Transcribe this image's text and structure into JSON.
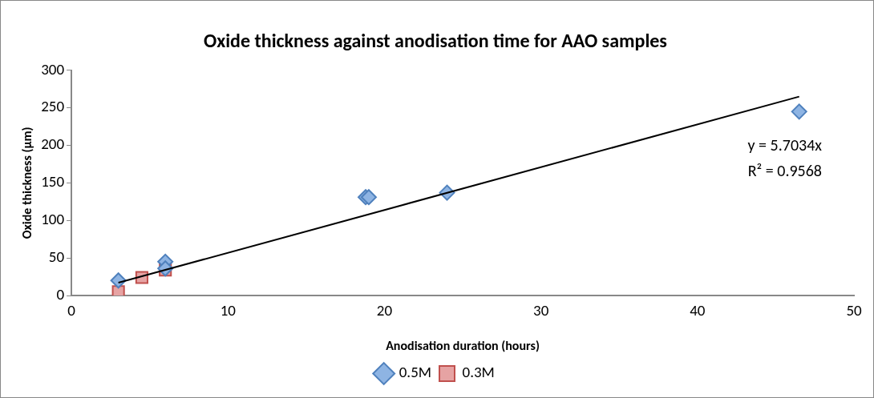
{
  "chart_data": {
    "type": "scatter",
    "title": "Oxide thickness against anodisation time for AAO samples",
    "xlabel": "Anodisation duration (hours)",
    "ylabel": "Oxide thickness (µm)",
    "xlim": [
      0,
      50
    ],
    "xticks": [
      0,
      10,
      20,
      30,
      40,
      50
    ],
    "ylim": [
      0,
      300
    ],
    "yticks": [
      0,
      50,
      100,
      150,
      200,
      250,
      300
    ],
    "grid": false,
    "legend": "bottom",
    "series": [
      {
        "name": "0.5M",
        "color": "#8eb4e3",
        "marker": "diamond",
        "x": [
          3,
          6,
          6,
          18.8,
          19,
          24,
          46.5
        ],
        "values": [
          20,
          45,
          36,
          131,
          131,
          137,
          245
        ]
      },
      {
        "name": "0.3M",
        "color": "#e6a3a3",
        "marker": "square",
        "x": [
          3,
          4.5,
          6
        ],
        "values": [
          5,
          24,
          34
        ]
      },
      {
        "type": "line",
        "color": "#000000",
        "marker": "none",
        "x": [
          3,
          46.5
        ],
        "values": [
          17,
          265
        ]
      }
    ],
    "annotations": [
      "y = 5.7034x",
      "R² = 0.9568"
    ]
  }
}
